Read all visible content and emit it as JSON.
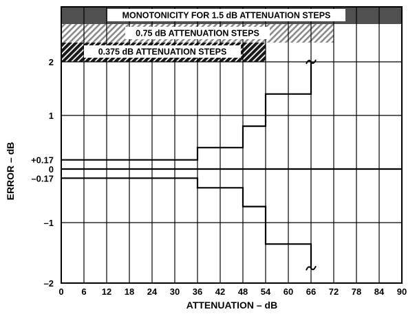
{
  "chart_data": {
    "type": "line",
    "xlabel": "ATTENUATION – dB",
    "ylabel": "ERROR – dB",
    "xlim": [
      0,
      90
    ],
    "ylim": [
      -2,
      2
    ],
    "x_ticks": [
      {
        "value": 0,
        "label": "0"
      },
      {
        "value": 6,
        "label": "6"
      },
      {
        "value": 12,
        "label": "12"
      },
      {
        "value": 18,
        "label": "18"
      },
      {
        "value": 24,
        "label": "24"
      },
      {
        "value": 30,
        "label": "30"
      },
      {
        "value": 36,
        "label": "36"
      },
      {
        "value": 42,
        "label": "42"
      },
      {
        "value": 48,
        "label": "48"
      },
      {
        "value": 54,
        "label": "54"
      },
      {
        "value": 60,
        "label": "60"
      },
      {
        "value": 66,
        "label": "66"
      },
      {
        "value": 72,
        "label": "72"
      },
      {
        "value": 78,
        "label": "78"
      },
      {
        "value": 84,
        "label": "84"
      },
      {
        "value": 90,
        "label": "90"
      }
    ],
    "y_ticks": [
      {
        "value": 2,
        "label": "2"
      },
      {
        "value": 1,
        "label": "1"
      },
      {
        "value": 0.17,
        "label": "+0.17"
      },
      {
        "value": 0,
        "label": "0"
      },
      {
        "value": -0.17,
        "label": "–0.17"
      },
      {
        "value": -1,
        "label": "–1"
      },
      {
        "value": -2,
        "label": "–2"
      }
    ],
    "grid": true,
    "series": [
      {
        "x": [
          0,
          36,
          36,
          48,
          48,
          54,
          54,
          66,
          66
        ],
        "y": [
          0.17,
          0.17,
          0.4,
          0.4,
          0.8,
          0.8,
          1.4,
          1.4,
          2.0
        ]
      },
      {
        "x": [
          0,
          90
        ],
        "y": [
          0,
          0
        ]
      },
      {
        "x": [
          0,
          36,
          36,
          48,
          48,
          54,
          54,
          66,
          66
        ],
        "y": [
          -0.17,
          -0.17,
          -0.35,
          -0.35,
          -0.7,
          -0.7,
          -1.4,
          -1.4,
          -1.85
        ]
      }
    ],
    "bands": [
      {
        "label": "MONOTONICITY FOR 1.5 dB ATTENUATION STEPS",
        "x_start": 0,
        "x_end": 90,
        "fill": "dark-solid"
      },
      {
        "label": "0.75 dB ATTENUATION STEPS",
        "x_start": 0,
        "x_end": 72,
        "fill": "light-hatch"
      },
      {
        "label": "0.375 dB ATTENUATION STEPS",
        "x_start": 0,
        "x_end": 54,
        "fill": "dark-hatch"
      }
    ]
  }
}
